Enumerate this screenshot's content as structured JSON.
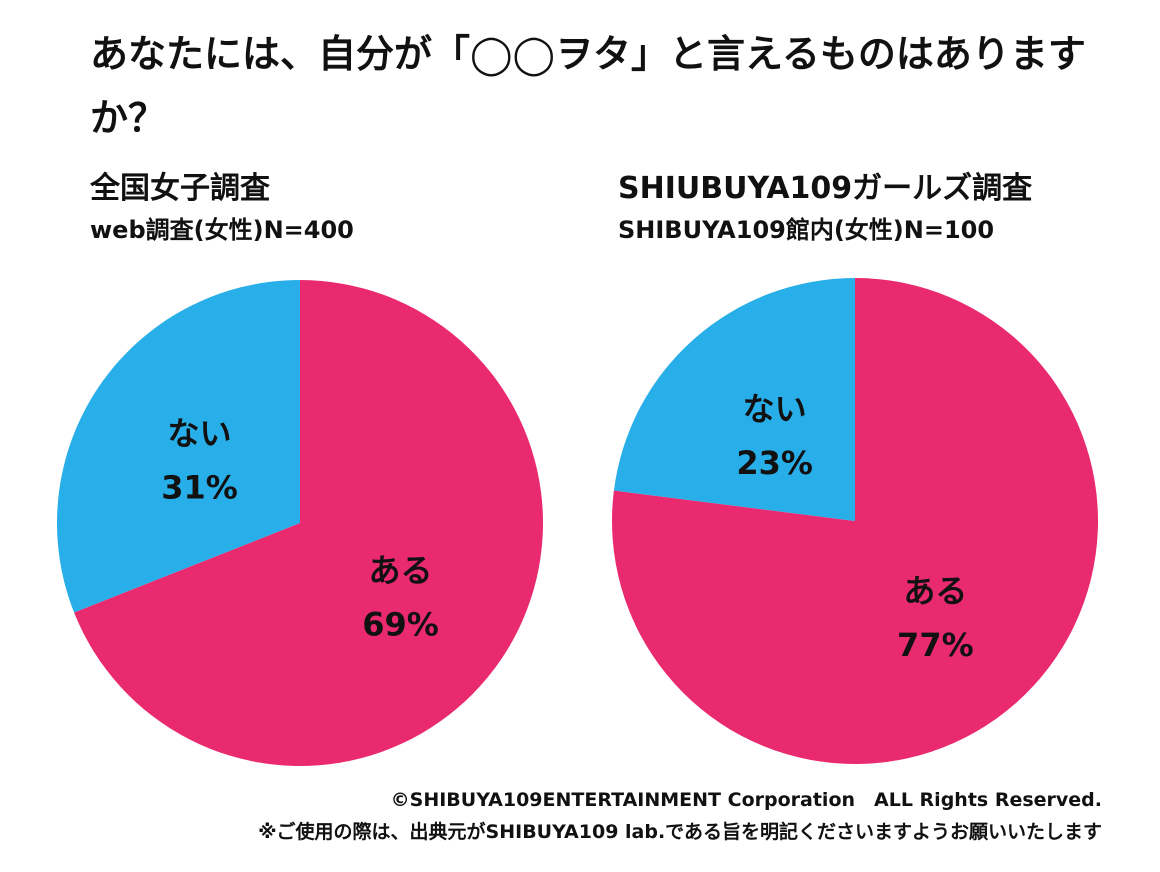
{
  "title": "あなたには、自分が「◯◯ヲタ」と言えるものはありますか？",
  "chart_data": [
    {
      "type": "pie",
      "title": "全国女子調査",
      "subtitle": "web調査(女性)N=400",
      "slices": [
        {
          "label": "ある",
          "value": 69,
          "value_text": "69%",
          "color": "#EA2A6F"
        },
        {
          "label": "ない",
          "value": 31,
          "value_text": "31%",
          "color": "#28AEE8"
        }
      ]
    },
    {
      "type": "pie",
      "title": "SHIUBUYA109ガールズ調査",
      "subtitle": "SHIBUYA109館内(女性)N=100",
      "slices": [
        {
          "label": "ある",
          "value": 77,
          "value_text": "77%",
          "color": "#EA2A6F"
        },
        {
          "label": "ない",
          "value": 23,
          "value_text": "23%",
          "color": "#28AEE8"
        }
      ]
    }
  ],
  "footer": {
    "copyright": "©SHIBUYA109ENTERTAINMENT Corporation　ALL Rights Reserved.",
    "notice": "※ご使用の際は、出典元がSHIBUYA109 lab.である旨を明記くださいますようお願いいたします"
  }
}
